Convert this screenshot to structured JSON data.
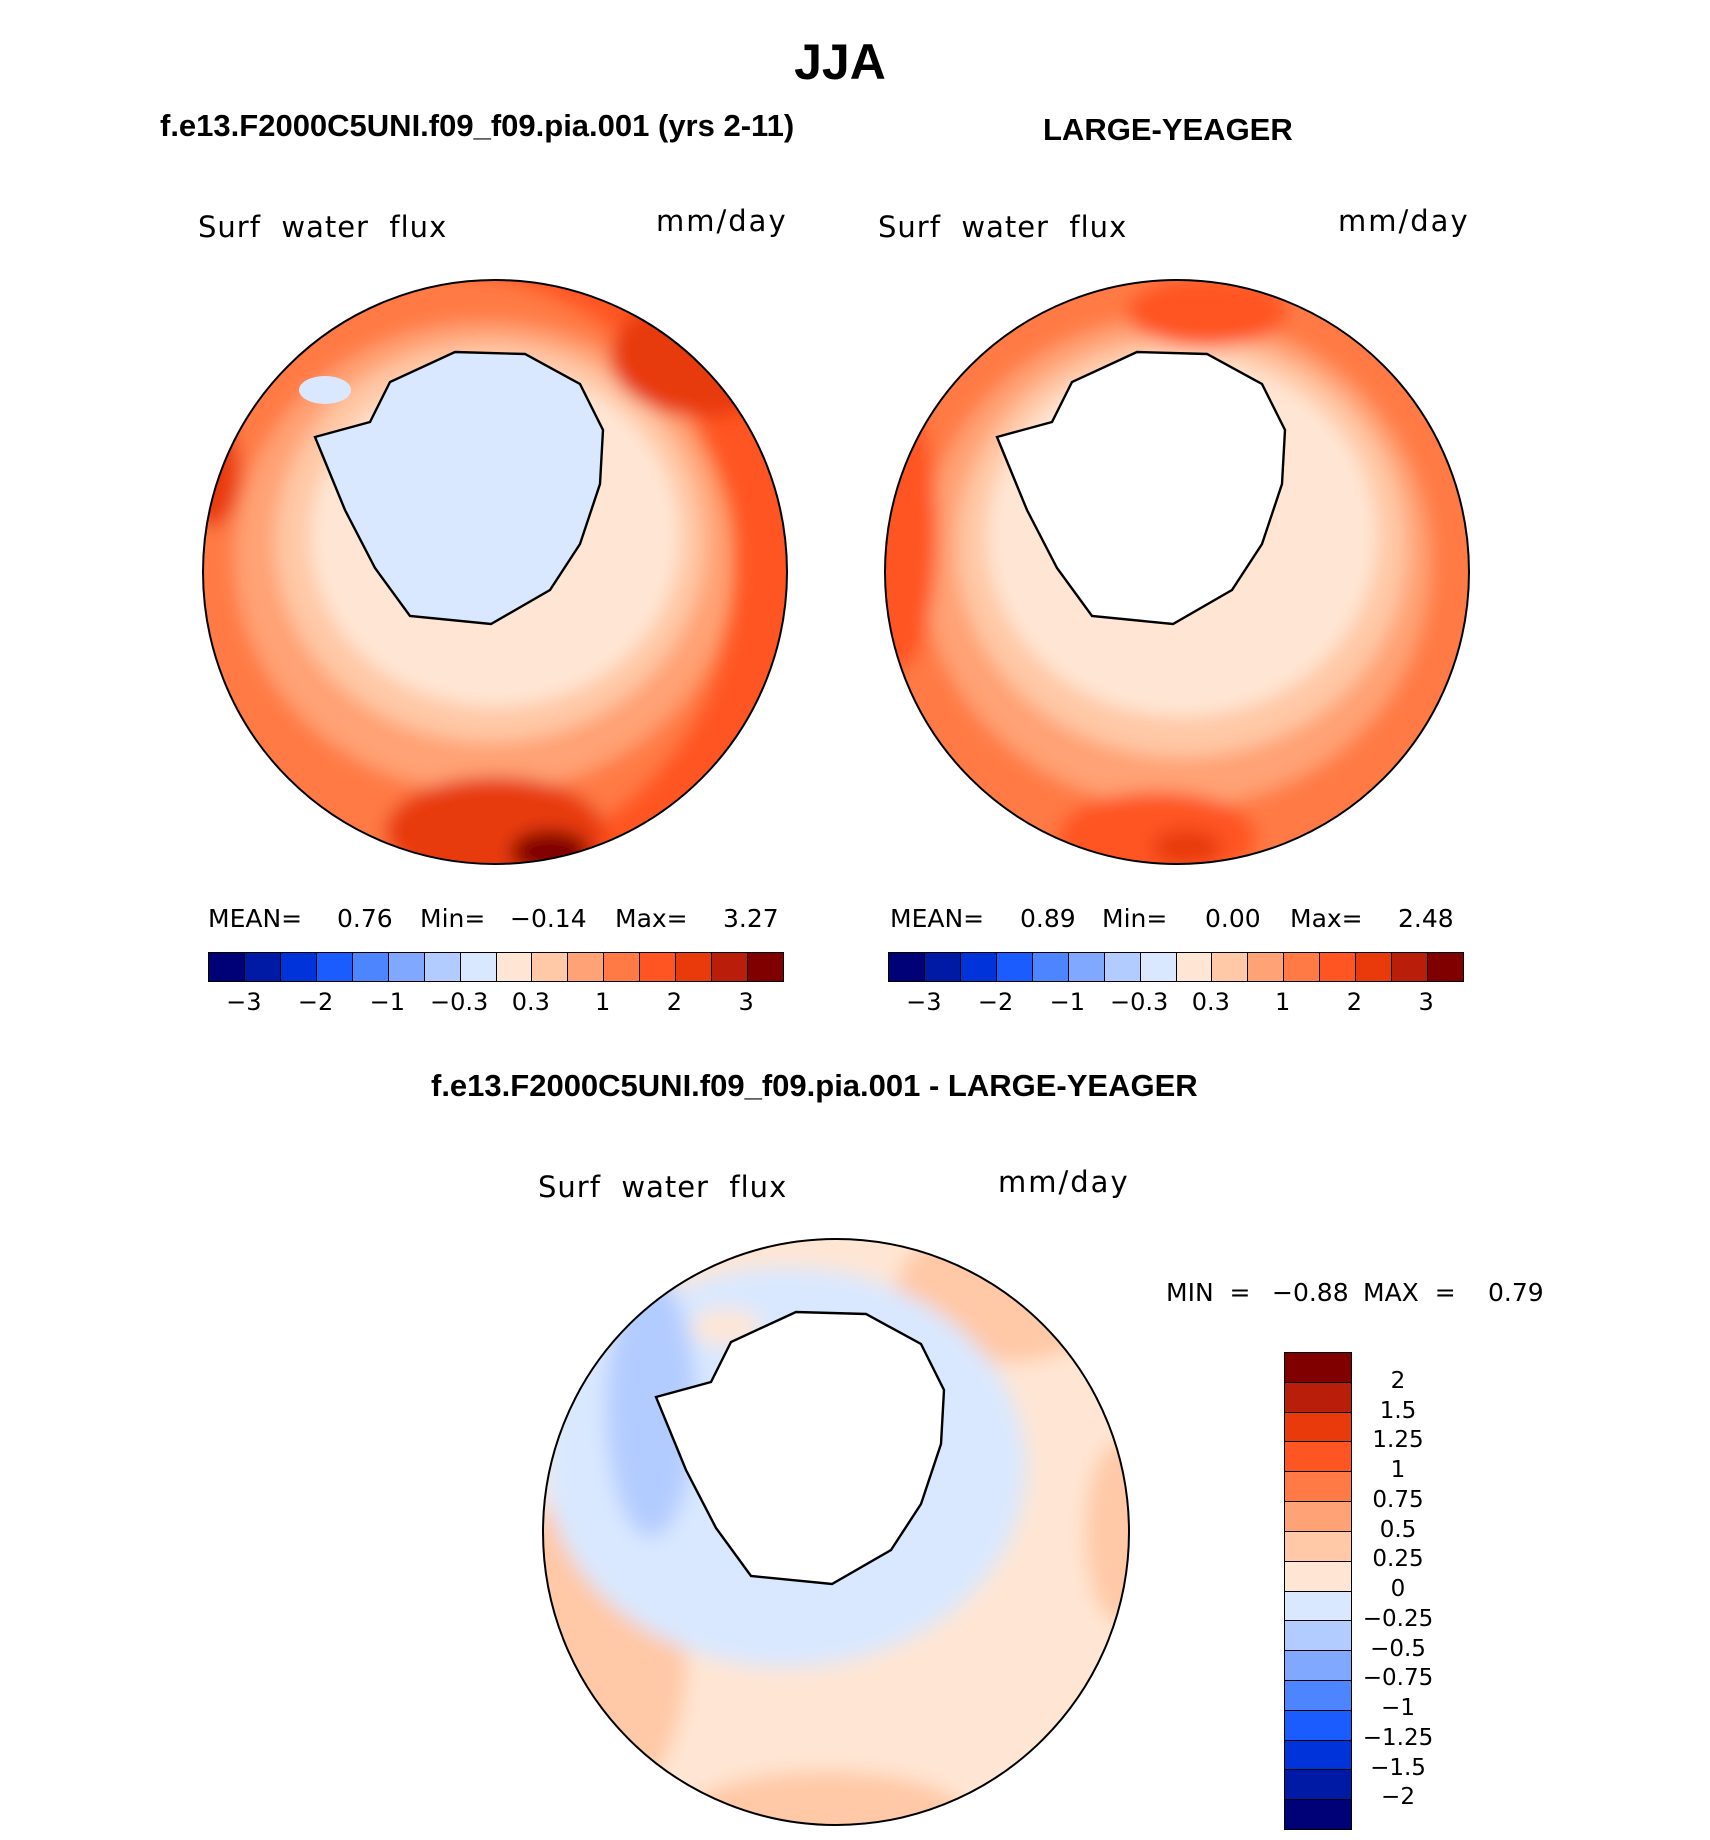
{
  "season": "JJA",
  "left_title": "f.e13.F2000C5UNI.f09_f09.pia.001 (yrs 2-11)",
  "right_title": "LARGE-YEAGER",
  "diff_title": "f.e13.F2000C5UNI.f09_f09.pia.001 - LARGE-YEAGER",
  "palette": {
    "blue": [
      "#000077",
      "#001aa6",
      "#0033d9",
      "#1a5cff",
      "#4d85ff",
      "#80a8ff",
      "#b3ccff",
      "#d9e8ff"
    ],
    "red": [
      "#ffe6d4",
      "#ffc8a6",
      "#ffa275",
      "#ff7a45",
      "#ff5522",
      "#e83a0a",
      "#b81e0a",
      "#800000"
    ]
  },
  "chart_data": [
    {
      "type": "map",
      "panel": "model",
      "variable_label": "Surf  water  flux",
      "units_label": "mm/day",
      "stats": {
        "mean_label": "MEAN=",
        "mean": "0.76",
        "min_label": "Min=",
        "min": "−0.14",
        "max_label": "Max=",
        "max": "3.27"
      },
      "colorbar_ticks": [
        "−3",
        "−2",
        "−1",
        "−0.3",
        "0.3",
        "1",
        "2",
        "3"
      ],
      "land_filled": true
    },
    {
      "type": "map",
      "panel": "observations",
      "variable_label": "Surf  water  flux",
      "units_label": "mm/day",
      "stats": {
        "mean_label": "MEAN=",
        "mean": "0.89",
        "min_label": "Min=",
        "min": "0.00",
        "max_label": "Max=",
        "max": "2.48"
      },
      "colorbar_ticks": [
        "−3",
        "−2",
        "−1",
        "−0.3",
        "0.3",
        "1",
        "2",
        "3"
      ],
      "land_filled": false
    },
    {
      "type": "map",
      "panel": "difference",
      "variable_label": "Surf  water  flux",
      "units_label": "mm/day",
      "stats": {
        "min_label": "MIN  =",
        "min": "−0.88",
        "max_label": "MAX  =",
        "max": "0.79"
      },
      "colorbar_ticks": [
        "2",
        "1.5",
        "1.25",
        "1",
        "0.75",
        "0.5",
        "0.25",
        "0",
        "−0.25",
        "−0.5",
        "−0.75",
        "−1",
        "−1.25",
        "−1.5",
        "−2"
      ],
      "colorbar_colors": [
        "#800000",
        "#b81e0a",
        "#e83a0a",
        "#ff5522",
        "#ff7a45",
        "#ffa275",
        "#ffc8a6",
        "#ffe6d4",
        "#d9e8ff",
        "#b3ccff",
        "#80a8ff",
        "#4d85ff",
        "#1a5cff",
        "#0033d9",
        "#001aa6",
        "#000077"
      ]
    }
  ]
}
